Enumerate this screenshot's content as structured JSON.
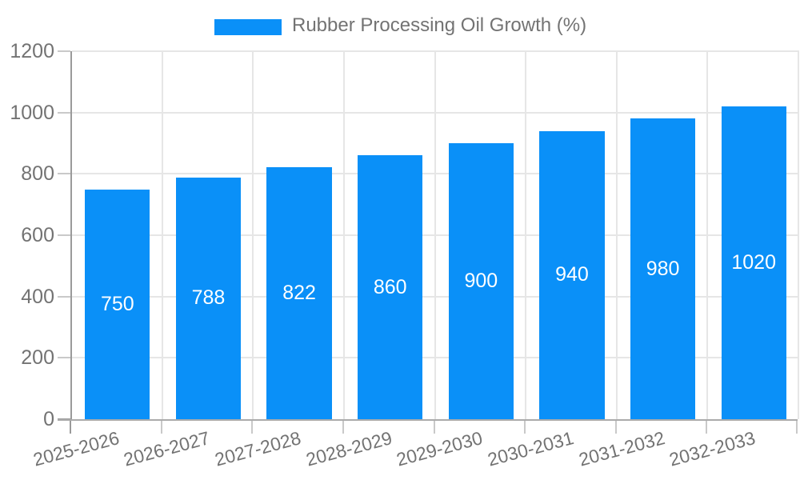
{
  "chart_data": {
    "type": "bar",
    "title": "Rubber Processing Oil Growth (%)",
    "categories": [
      "2025-2026",
      "2026-2027",
      "2027-2028",
      "2028-2029",
      "2029-2030",
      "2030-2031",
      "2031-2032",
      "2032-2033"
    ],
    "values": [
      750,
      788,
      822,
      860,
      900,
      940,
      980,
      1020
    ],
    "xlabel": "",
    "ylabel": "",
    "ylim": [
      0,
      1200
    ],
    "yticks": [
      0,
      200,
      400,
      600,
      800,
      1000,
      1200
    ],
    "grid": true,
    "legend_position": "top",
    "value_labels": "inside-center",
    "x_label_rotation_deg": -15,
    "colors": {
      "bar": "#0a90f8",
      "bar_label": "#ffffff",
      "axis_text": "#737373",
      "legend_text": "#737373",
      "gridline": "#e6e6e6",
      "y_axis_line": "#9a9a9a",
      "x_axis_line": "#ababab",
      "tick": "#c9c9c9",
      "background": "#ffffff"
    }
  }
}
